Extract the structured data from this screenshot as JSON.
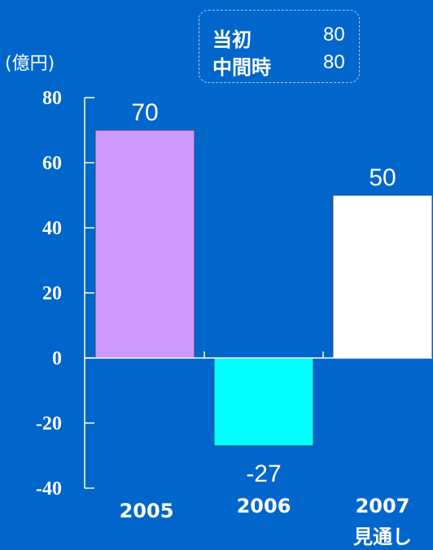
{
  "colors": {
    "background": "#0066CC",
    "axis": "#ffffff",
    "bar_2005": "#CC99FF",
    "bar_2006": "#00FFFF",
    "bar_2007": "#FFFFFF"
  },
  "legend": {
    "rows": [
      {
        "key": "当初",
        "value": "80"
      },
      {
        "key": "中間時",
        "value": "80"
      }
    ]
  },
  "unit_label": "(億円)",
  "chart_data": {
    "type": "bar",
    "categories": [
      "2005",
      "2006",
      "2007"
    ],
    "category_sublabels": [
      "",
      "",
      "見通し"
    ],
    "values": [
      70,
      -27,
      50
    ],
    "data_labels": [
      "70",
      "-27",
      "50"
    ],
    "ylim": [
      -40,
      80
    ],
    "yticks": [
      -40,
      -20,
      0,
      20,
      40,
      60,
      80
    ],
    "ytick_labels": [
      "-40",
      "-20",
      "0",
      "20",
      "40",
      "60",
      "80"
    ],
    "grid": false,
    "xlabel": "",
    "ylabel": ""
  }
}
